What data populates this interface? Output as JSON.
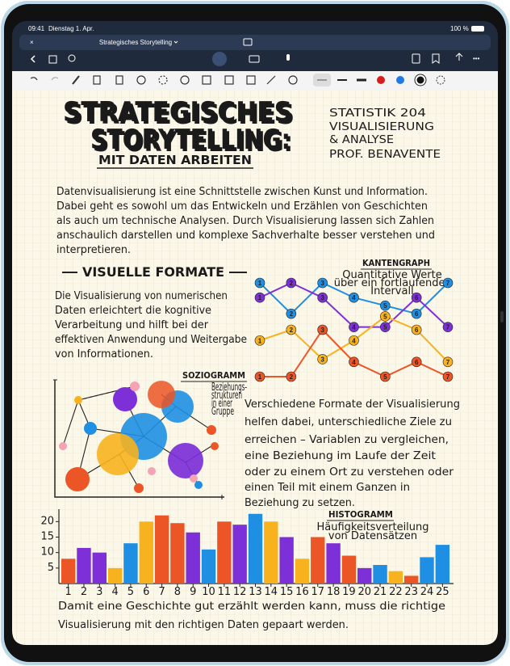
{
  "status_bar": {
    "time": "09:41",
    "date": "Dienstag 1. Apr.",
    "battery": "100 %"
  },
  "document_title": "Strategisches Storytelling",
  "note": {
    "title_lines": [
      "STRATEGISCHES",
      "STORYTELLING:"
    ],
    "subtitle": "MIT DATEN ARBEITEN",
    "course_lines": [
      "STATISTIK 204",
      "VISUALISIERUNG",
      "& ANALYSE",
      "PROF. BENAVENTE"
    ],
    "intro_lines": [
      "Datenvisualisierung ist eine Schnittstelle zwischen Kunst und Information.",
      "Dabei geht es sowohl um das Entwickeln und Erzählen von Geschichten",
      "als auch um technische Analysen. Durch Visualisierung lassen sich Zahlen",
      "anschaulich darstellen und komplexe Sachverhalte besser verstehen und",
      "interpretieren."
    ],
    "section_heading": "VISUELLE FORMATE",
    "section_lines": [
      "Die Visualisierung von numerischen",
      "Daten erleichtert die kognitive",
      "Verarbeitung und hilft bei der",
      "effektiven Anwendung und Weitergabe",
      "von Informationen."
    ],
    "sociogram": {
      "title": "SOZIOGRAMM",
      "caption_lines": [
        "Beziehungs-",
        "strukturen",
        "in einer",
        "Gruppe"
      ]
    },
    "formats_lines": [
      "Verschiedene Formate der Visualisierung",
      "helfen dabei, unterschiedliche Ziele zu",
      "erreichen – Variablen zu vergleichen,",
      "eine Beziehung im Laufe der Zeit",
      "oder zu einem Ort zu verstehen oder",
      "einen Teil mit einem Ganzen in",
      "Beziehung zu setzen."
    ],
    "closing_lines": [
      "Damit eine Geschichte gut erzählt werden kann, muss die richtige",
      "Visualisierung mit den richtigen Daten gepaart werden."
    ]
  },
  "chart_data": [
    {
      "type": "line",
      "title": "KANTENGRAPH",
      "subtitle_lines": [
        "Quantitative Werte",
        "über ein fortlaufendes",
        "Intervall"
      ],
      "x": [
        1,
        2,
        3,
        4,
        5,
        6,
        7
      ],
      "xlim": [
        1,
        7
      ],
      "ylim": [
        0,
        7
      ],
      "series": [
        {
          "color": "#1e8fe3",
          "values": [
            7,
            4.7,
            7,
            5.9,
            5.3,
            4.7,
            7
          ]
        },
        {
          "color": "#7d2fd8",
          "values": [
            5.9,
            7,
            5.9,
            3.7,
            3.7,
            5.9,
            3.7
          ]
        },
        {
          "color": "#f7b21e",
          "values": [
            2.7,
            3.5,
            1.3,
            2.7,
            4.5,
            3.5,
            1.1
          ]
        },
        {
          "color": "#ec5526",
          "values": [
            0,
            0,
            3.5,
            1.1,
            0,
            1.1,
            0
          ]
        }
      ]
    },
    {
      "type": "bar",
      "title": "HISTOGRAMM",
      "subtitle_lines": [
        "Häufigkeitsverteilung",
        "von Datensätzen"
      ],
      "categories": [
        1,
        2,
        3,
        4,
        5,
        6,
        7,
        8,
        9,
        10,
        11,
        12,
        13,
        14,
        15,
        16,
        17,
        18,
        19,
        20,
        21,
        22,
        23,
        24,
        25
      ],
      "values": [
        8,
        11.5,
        10,
        5,
        13,
        20,
        22,
        19.5,
        16.5,
        11,
        20,
        19,
        22.5,
        20,
        15,
        8,
        15,
        13,
        9,
        5,
        6,
        4,
        2.5,
        8.5,
        12.5
      ],
      "colors": [
        "#ec5526",
        "#7d2fd8",
        "#7d2fd8",
        "#f7b21e",
        "#1e8fe3",
        "#f7b21e",
        "#ec5526",
        "#ec5526",
        "#7d2fd8",
        "#1e8fe3",
        "#ec5526",
        "#7d2fd8",
        "#1e8fe3",
        "#f7b21e",
        "#7d2fd8",
        "#f7b21e",
        "#ec5526",
        "#7d2fd8",
        "#ec5526",
        "#7d2fd8",
        "#1e8fe3",
        "#f7b21e",
        "#ec5526",
        "#1e8fe3",
        "#1e8fe3"
      ],
      "ylim": [
        0,
        24
      ],
      "yticks": [
        5,
        10,
        15,
        20
      ]
    }
  ]
}
